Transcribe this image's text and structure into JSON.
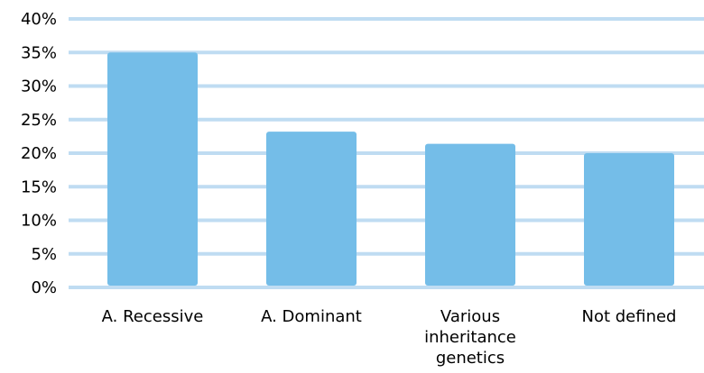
{
  "chart_data": {
    "type": "bar",
    "title": "",
    "xlabel": "",
    "ylabel": "",
    "categories": [
      [
        "A. Recessive"
      ],
      [
        "A. Dominant"
      ],
      [
        "Various",
        "inheritance",
        "genetics"
      ],
      [
        "Not defined"
      ]
    ],
    "values": [
      35,
      23.2,
      21.4,
      20
    ],
    "ylim": [
      0,
      40
    ],
    "y_ticks": [
      0,
      5,
      10,
      15,
      20,
      25,
      30,
      35,
      40
    ],
    "y_tick_format": "%",
    "grid": true,
    "legend": "none",
    "colors": {
      "bar": "#74BDE8",
      "grid": "#BFDCF2",
      "text": "#000000"
    }
  }
}
